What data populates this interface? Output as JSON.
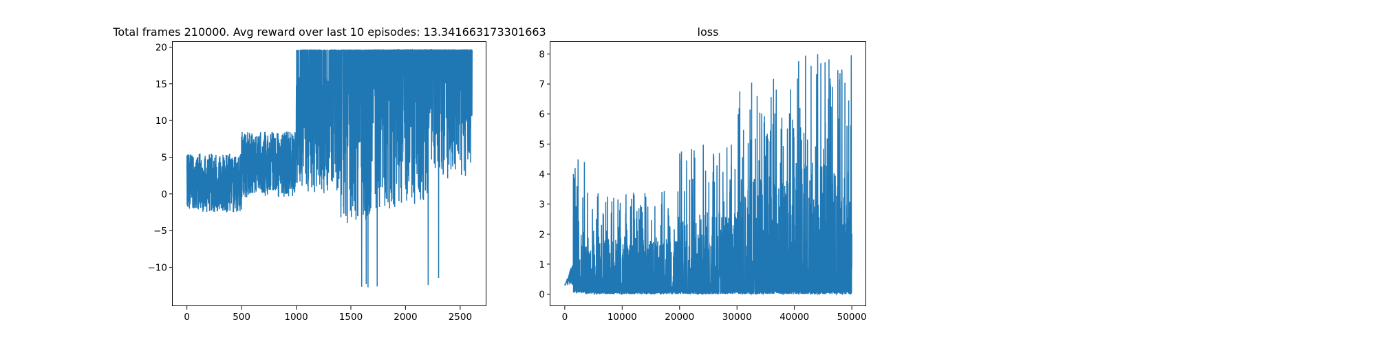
{
  "chart_data": [
    {
      "type": "line",
      "title": "Total frames 210000. Avg reward over last 10 episodes: 13.341663173301663",
      "xlabel": "",
      "ylabel": "",
      "xlim": [
        -130,
        2740
      ],
      "ylim": [
        -15.3,
        20.7
      ],
      "xticks": [
        0,
        500,
        1000,
        1500,
        2000,
        2500
      ],
      "yticks": [
        -10,
        -5,
        0,
        5,
        10,
        15,
        20
      ],
      "xtick_labels": [
        "0",
        "500",
        "1000",
        "1500",
        "2000",
        "2500"
      ],
      "ytick_labels": [
        "−10",
        "−5",
        "0",
        "5",
        "10",
        "15",
        "20"
      ],
      "grid": false,
      "color": "#1f77b4",
      "series": [
        {
          "values_generator": "episode rewards, noisy",
          "segments": [
            {
              "x": [
                0,
                500
              ],
              "mid": 1.5,
              "spread": 4.0,
              "min": -7,
              "max": 8
            },
            {
              "x": [
                500,
                1000
              ],
              "mid": 4.0,
              "spread": 4.5,
              "min": -5,
              "max": 19
            },
            {
              "x": [
                1000,
                1400
              ],
              "mid": 8.0,
              "spread": 8.0,
              "min": -4,
              "max": 19.7
            },
            {
              "x": [
                1400,
                1700
              ],
              "mid": 7.0,
              "spread": 11.0,
              "min": -13,
              "max": 19.7
            },
            {
              "x": [
                1700,
                2200
              ],
              "mid": 10.0,
              "spread": 12.0,
              "min": -13,
              "max": 19.7
            },
            {
              "x": [
                2200,
                2610
              ],
              "mid": 12.0,
              "spread": 10.0,
              "min": -13,
              "max": 19.7
            }
          ],
          "n_points": 2610
        }
      ]
    },
    {
      "type": "line",
      "title": "loss",
      "xlabel": "",
      "ylabel": "",
      "xlim": [
        -2500,
        52500
      ],
      "ylim": [
        -0.4,
        8.4
      ],
      "xticks": [
        0,
        10000,
        20000,
        30000,
        40000,
        50000
      ],
      "yticks": [
        0,
        1,
        2,
        3,
        4,
        5,
        6,
        7,
        8
      ],
      "xtick_labels": [
        "0",
        "10000",
        "20000",
        "30000",
        "40000",
        "50000"
      ],
      "ytick_labels": [
        "0",
        "1",
        "2",
        "3",
        "4",
        "5",
        "6",
        "7",
        "8"
      ],
      "grid": false,
      "color": "#1f77b4",
      "series": [
        {
          "values_generator": "training loss, spiky",
          "segments": [
            {
              "x": [
                0,
                1500
              ],
              "base": 0.3,
              "peak": 1.5
            },
            {
              "x": [
                1500,
                3500
              ],
              "base": 0.05,
              "peak": 4.5
            },
            {
              "x": [
                3500,
                20000
              ],
              "base": 0.0,
              "peak": 3.5
            },
            {
              "x": [
                20000,
                30000
              ],
              "base": 0.0,
              "peak": 5.0
            },
            {
              "x": [
                30000,
                40000
              ],
              "base": 0.0,
              "peak": 7.2
            },
            {
              "x": [
                40000,
                50000
              ],
              "base": 0.0,
              "peak": 8.0
            }
          ],
          "n_points": 2500
        }
      ]
    }
  ]
}
